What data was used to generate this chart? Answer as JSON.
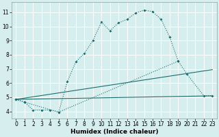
{
  "xlabel": "Humidex (Indice chaleur)",
  "bg_color": "#d6eeee",
  "grid_color": "#ffffff",
  "line_color": "#1a6b6b",
  "xlim": [
    -0.5,
    23.5
  ],
  "ylim": [
    3.5,
    11.7
  ],
  "xticks": [
    0,
    1,
    2,
    3,
    4,
    5,
    6,
    7,
    8,
    9,
    10,
    11,
    12,
    13,
    14,
    15,
    16,
    17,
    18,
    19,
    20,
    21,
    22,
    23
  ],
  "yticks": [
    4,
    5,
    6,
    7,
    8,
    9,
    10,
    11
  ],
  "line1_x": [
    0,
    1,
    2,
    3,
    4,
    5,
    6,
    7,
    8,
    9,
    10,
    11,
    12,
    13,
    14,
    15,
    16,
    17,
    18,
    19
  ],
  "line1_y": [
    4.85,
    4.65,
    4.1,
    4.1,
    4.1,
    3.95,
    6.1,
    7.5,
    8.1,
    9.0,
    10.3,
    9.7,
    10.25,
    10.5,
    10.95,
    11.15,
    11.05,
    10.5,
    9.25,
    7.55
  ],
  "line2_x": [
    0,
    1,
    5,
    19,
    20,
    22,
    23
  ],
  "line2_y": [
    4.85,
    4.65,
    3.95,
    7.55,
    6.65,
    5.1,
    5.1
  ],
  "line3_x": [
    0,
    23
  ],
  "line3_y": [
    4.85,
    6.95
  ],
  "line4_x": [
    0,
    23
  ],
  "line4_y": [
    4.85,
    5.1
  ],
  "tick_fontsize": 5.5,
  "xlabel_fontsize": 6.5
}
